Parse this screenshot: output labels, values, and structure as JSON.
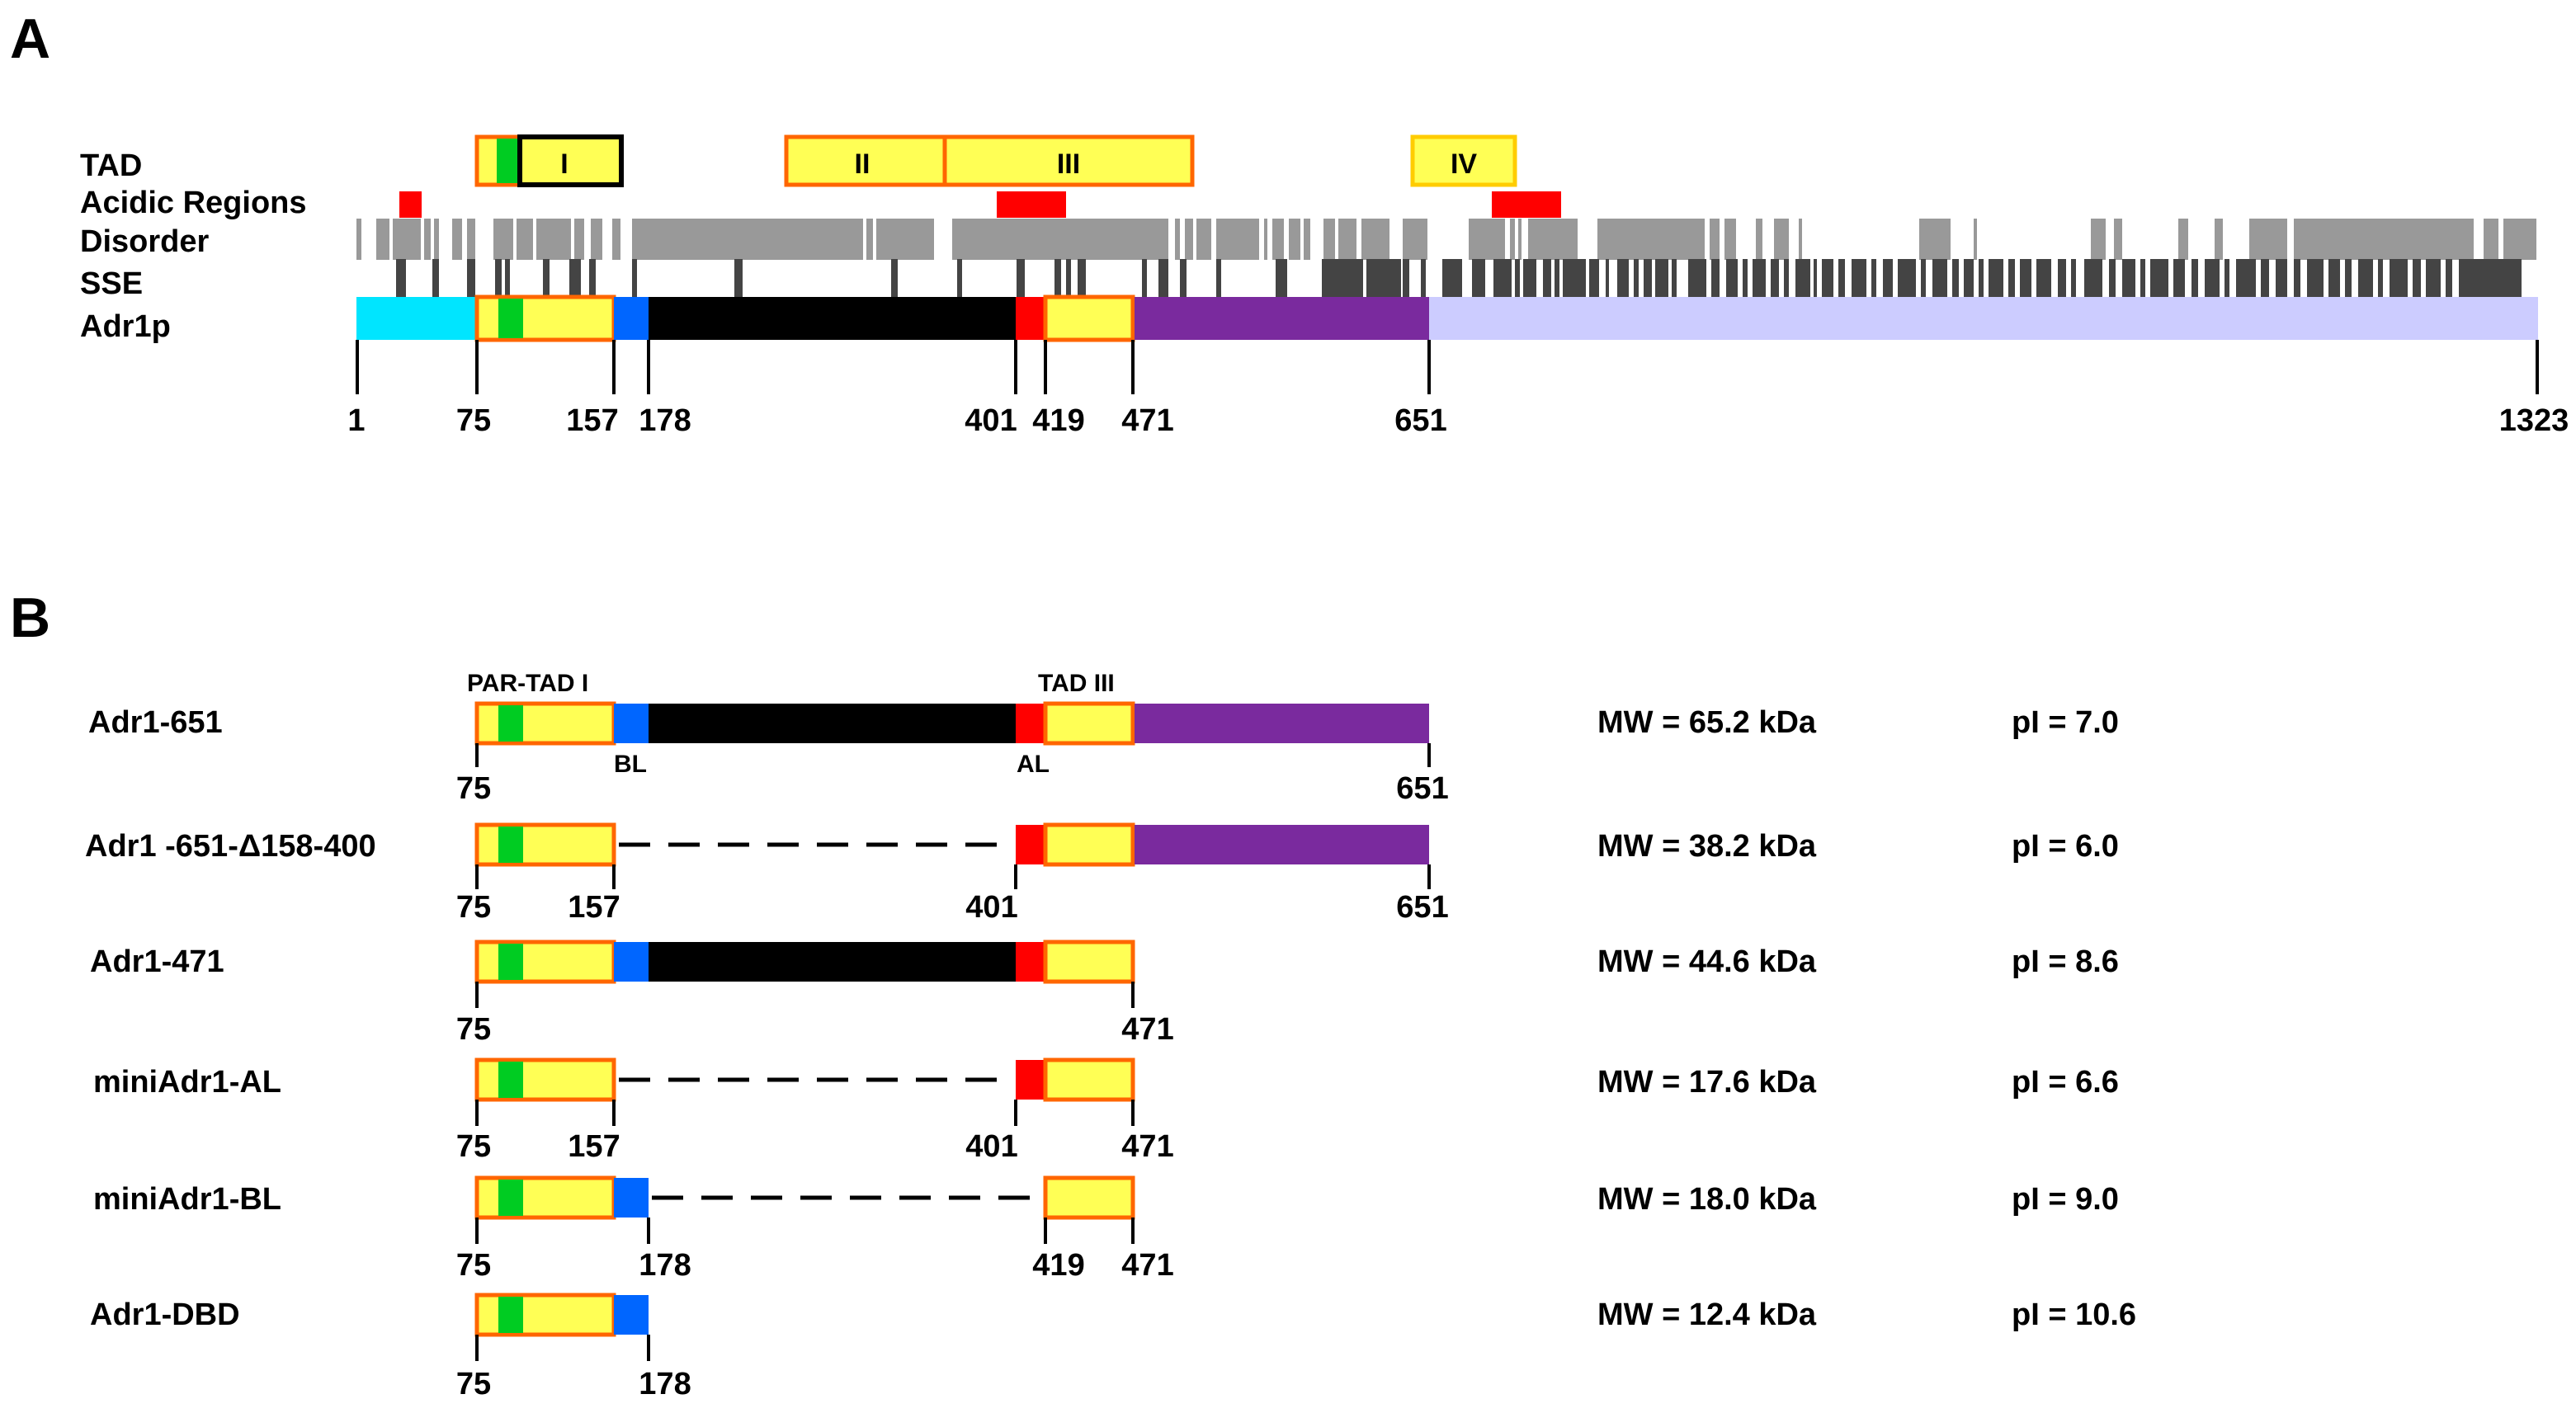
{
  "panel_a": {
    "label": "A",
    "track_labels": {
      "tad": "TAD",
      "acidic": "Acidic Regions",
      "disorder": "Disorder",
      "sse": "SSE",
      "protein": "Adr1p"
    },
    "tad_labels": {
      "i": "I",
      "ii": "II",
      "iii": "III",
      "iv": "IV"
    },
    "ticks": [
      "1",
      "75",
      "157",
      "178",
      "401",
      "419",
      "471",
      "651",
      "1323"
    ]
  },
  "panel_b": {
    "label": "B",
    "annotations": {
      "partad": "PAR-TAD I",
      "tad3": "TAD III",
      "bl": "BL",
      "al": "AL"
    },
    "constructs": [
      {
        "name": "Adr1-651",
        "mw": "MW = 65.2 kDa",
        "pi": "pI = 7.0",
        "ticks": [
          "75",
          "651"
        ]
      },
      {
        "name": "Adr1 -651-Δ158-400",
        "mw": "MW = 38.2 kDa",
        "pi": "pI = 6.0",
        "ticks": [
          "75",
          "157",
          "401",
          "651"
        ]
      },
      {
        "name": "Adr1-471",
        "mw": "MW = 44.6 kDa",
        "pi": "pI = 8.6",
        "ticks": [
          "75",
          "471"
        ]
      },
      {
        "name": "miniAdr1-AL",
        "mw": "MW = 17.6 kDa",
        "pi": "pI = 6.6",
        "ticks": [
          "75",
          "157",
          "401",
          "471"
        ]
      },
      {
        "name": "miniAdr1-BL",
        "mw": "MW = 18.0 kDa",
        "pi": "pI = 9.0",
        "ticks": [
          "75",
          "178",
          "419",
          "471"
        ]
      },
      {
        "name": "Adr1-DBD",
        "mw": "MW = 12.4 kDa",
        "pi": "pI = 10.6",
        "ticks": [
          "75",
          "178"
        ]
      }
    ]
  },
  "colors": {
    "n_term": "#00e5ff",
    "tad": "#ffff55",
    "tad_border": "#ff6600",
    "green": "#00cc22",
    "basic_linker": "#0066ff",
    "zinc_finger": "#000000",
    "acidic_linker": "#ff0000",
    "purple": "#7a2a9e",
    "c_term": "#ccccff",
    "disorder": "#999999",
    "sse": "#444444",
    "tad4_border": "#ffcc00"
  }
}
